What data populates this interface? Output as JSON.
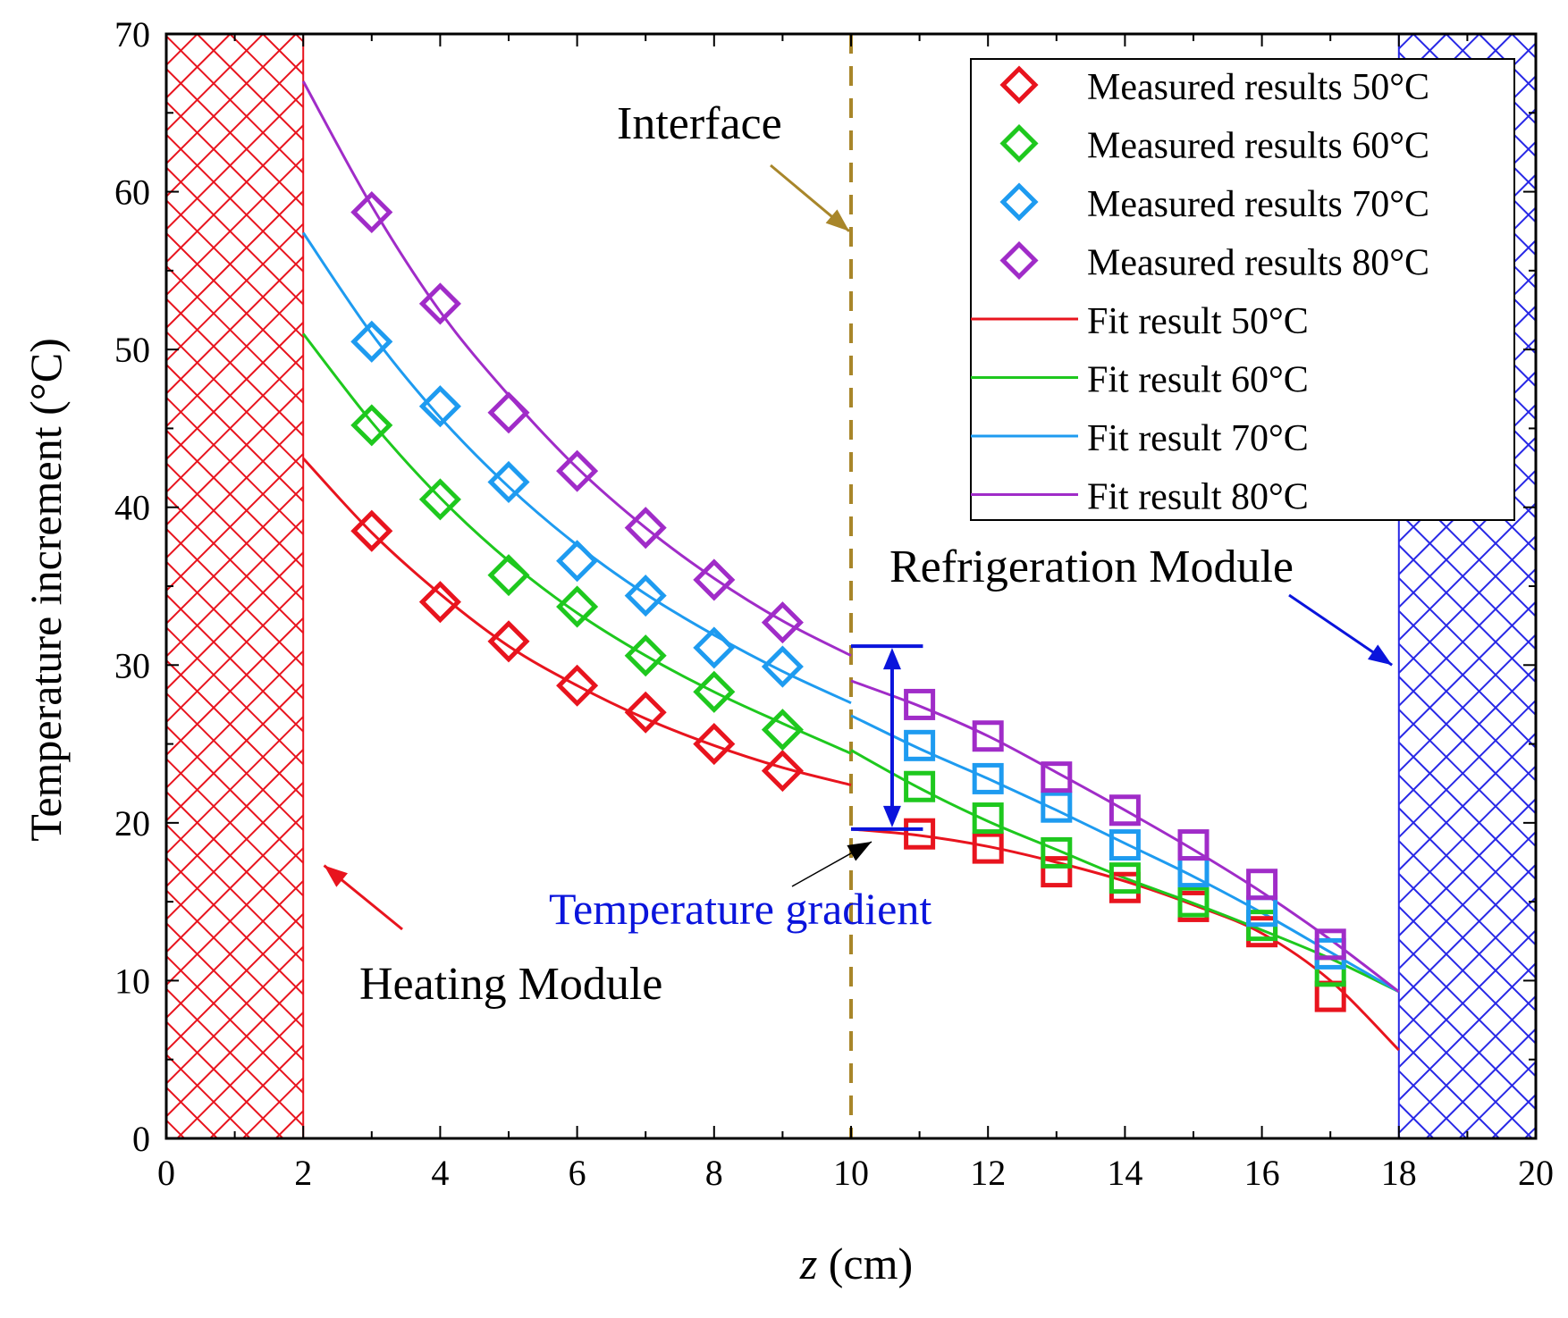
{
  "chart_data": {
    "type": "scatter",
    "xlabel_italic": "z",
    "xlabel_rest": " (cm)",
    "ylabel": "Temperature increment (°C)",
    "xlim": [
      0,
      20
    ],
    "ylim": [
      0,
      70
    ],
    "x_ticks": [
      0,
      2,
      4,
      6,
      8,
      10,
      12,
      14,
      16,
      18,
      20
    ],
    "y_ticks": [
      0,
      10,
      20,
      30,
      40,
      50,
      60,
      70
    ],
    "colors": {
      "s50": "#e8141e",
      "s60": "#1ec81e",
      "s70": "#1e9bf0",
      "s80": "#a02cc8",
      "heating_zone": "#e8141e",
      "cooling_zone": "#2828e6",
      "interface_line": "#a8862a",
      "gradient_marker": "#0a14dc"
    },
    "zones": [
      {
        "name": "heating-zone",
        "x_range": [
          0,
          2
        ],
        "color": "#e8141e"
      },
      {
        "name": "refrigeration-zone",
        "x_range": [
          18,
          20
        ],
        "color": "#2828e6"
      }
    ],
    "interface_x": 10,
    "gradient_bar": {
      "x": 10.6,
      "y_low": 19.6,
      "y_high": 31.2
    },
    "series": [
      {
        "key": "s50",
        "measured_label": "Measured results 50°C",
        "fit_label": "Fit result 50°C",
        "measured_left": [
          [
            3,
            38.5
          ],
          [
            4,
            34.0
          ],
          [
            5,
            31.5
          ],
          [
            6,
            28.7
          ],
          [
            7,
            27.0
          ],
          [
            8,
            25.0
          ],
          [
            9,
            23.3
          ]
        ],
        "measured_right": [
          [
            11,
            19.3
          ],
          [
            12,
            18.4
          ],
          [
            13,
            16.9
          ],
          [
            14,
            15.9
          ],
          [
            15,
            14.7
          ],
          [
            16,
            13.1
          ],
          [
            17,
            9.0
          ]
        ],
        "fit_left": [
          [
            2,
            43.1
          ],
          [
            3,
            38.4
          ],
          [
            4,
            34.5
          ],
          [
            5,
            31.2
          ],
          [
            6,
            28.7
          ],
          [
            7,
            26.6
          ],
          [
            8,
            24.9
          ],
          [
            9,
            23.5
          ],
          [
            10,
            22.4
          ]
        ],
        "fit_right": [
          [
            10,
            19.6
          ],
          [
            11,
            19.2
          ],
          [
            12,
            18.5
          ],
          [
            13,
            17.5
          ],
          [
            14,
            16.3
          ],
          [
            15,
            14.8
          ],
          [
            16,
            13.0
          ],
          [
            17,
            10.0
          ],
          [
            18,
            5.6
          ]
        ]
      },
      {
        "key": "s60",
        "measured_label": "Measured results 60°C",
        "fit_label": "Fit result 60°C",
        "measured_left": [
          [
            3,
            45.2
          ],
          [
            4,
            40.5
          ],
          [
            5,
            35.7
          ],
          [
            6,
            33.7
          ],
          [
            7,
            30.6
          ],
          [
            8,
            28.3
          ],
          [
            9,
            25.9
          ]
        ],
        "measured_right": [
          [
            11,
            22.3
          ],
          [
            12,
            20.3
          ],
          [
            13,
            18.1
          ],
          [
            14,
            16.5
          ],
          [
            15,
            15.0
          ],
          [
            16,
            13.5
          ],
          [
            17,
            10.6
          ]
        ],
        "fit_left": [
          [
            2,
            51.0
          ],
          [
            3,
            45.4
          ],
          [
            4,
            40.6
          ],
          [
            5,
            36.6
          ],
          [
            6,
            33.3
          ],
          [
            7,
            30.6
          ],
          [
            8,
            28.3
          ],
          [
            9,
            26.3
          ],
          [
            10,
            24.4
          ]
        ],
        "fit_right": [
          [
            10,
            24.6
          ],
          [
            11,
            22.2
          ],
          [
            12,
            20.1
          ],
          [
            13,
            18.3
          ],
          [
            14,
            16.5
          ],
          [
            15,
            14.9
          ],
          [
            16,
            13.2
          ],
          [
            17,
            11.4
          ],
          [
            18,
            9.3
          ]
        ]
      },
      {
        "key": "s70",
        "measured_left": [
          [
            3,
            50.5
          ],
          [
            4,
            46.4
          ],
          [
            5,
            41.6
          ],
          [
            6,
            36.6
          ],
          [
            7,
            34.4
          ],
          [
            8,
            31.1
          ],
          [
            9,
            29.9
          ]
        ],
        "measured_right": [
          [
            11,
            24.9
          ],
          [
            12,
            22.8
          ],
          [
            13,
            21.0
          ],
          [
            14,
            18.6
          ],
          [
            15,
            16.9
          ],
          [
            16,
            14.4
          ],
          [
            17,
            11.7
          ]
        ],
        "measured_label": "Measured results 70°C",
        "fit_label": "Fit result 70°C",
        "fit_left": [
          [
            2,
            57.4
          ],
          [
            3,
            51.0
          ],
          [
            4,
            45.7
          ],
          [
            5,
            41.3
          ],
          [
            6,
            37.6
          ],
          [
            7,
            34.5
          ],
          [
            8,
            31.9
          ],
          [
            9,
            29.6
          ],
          [
            10,
            27.6
          ]
        ],
        "fit_right": [
          [
            10,
            26.8
          ],
          [
            11,
            24.7
          ],
          [
            12,
            22.8
          ],
          [
            13,
            20.8
          ],
          [
            14,
            18.7
          ],
          [
            15,
            16.6
          ],
          [
            16,
            14.3
          ],
          [
            17,
            11.8
          ],
          [
            18,
            9.3
          ]
        ]
      },
      {
        "key": "s80",
        "measured_label": "Measured results 80°C",
        "fit_label": "Fit result 80°C",
        "measured_left": [
          [
            3,
            58.7
          ],
          [
            4,
            52.9
          ],
          [
            5,
            46.0
          ],
          [
            6,
            42.3
          ],
          [
            7,
            38.7
          ],
          [
            8,
            35.4
          ],
          [
            9,
            32.7
          ]
        ],
        "measured_right": [
          [
            11,
            27.5
          ],
          [
            12,
            25.5
          ],
          [
            13,
            22.9
          ],
          [
            14,
            20.8
          ],
          [
            15,
            18.6
          ],
          [
            16,
            16.1
          ],
          [
            17,
            12.3
          ]
        ],
        "fit_left": [
          [
            2,
            67.0
          ],
          [
            3,
            59.1
          ],
          [
            4,
            52.4
          ],
          [
            5,
            47.1
          ],
          [
            6,
            42.5
          ],
          [
            7,
            38.7
          ],
          [
            8,
            35.5
          ],
          [
            9,
            32.8
          ],
          [
            10,
            30.6
          ]
        ],
        "fit_right": [
          [
            10,
            29.0
          ],
          [
            11,
            27.4
          ],
          [
            12,
            25.5
          ],
          [
            13,
            23.2
          ],
          [
            14,
            20.8
          ],
          [
            15,
            18.3
          ],
          [
            16,
            15.6
          ],
          [
            17,
            12.6
          ],
          [
            18,
            9.3
          ]
        ]
      }
    ],
    "annotations": {
      "interface": {
        "text": "Interface",
        "arrow_tip": [
          10.0,
          57.5
        ]
      },
      "refrigeration": {
        "text": "Refrigeration Module",
        "arrow_tip": [
          17.9,
          30.0
        ]
      },
      "heating": {
        "text": "Heating Module",
        "arrow_tip": [
          2.2,
          17.3
        ]
      },
      "gradient": {
        "text": "Temperature gradient",
        "arrow_tip": [
          10.3,
          18.8
        ]
      }
    }
  }
}
